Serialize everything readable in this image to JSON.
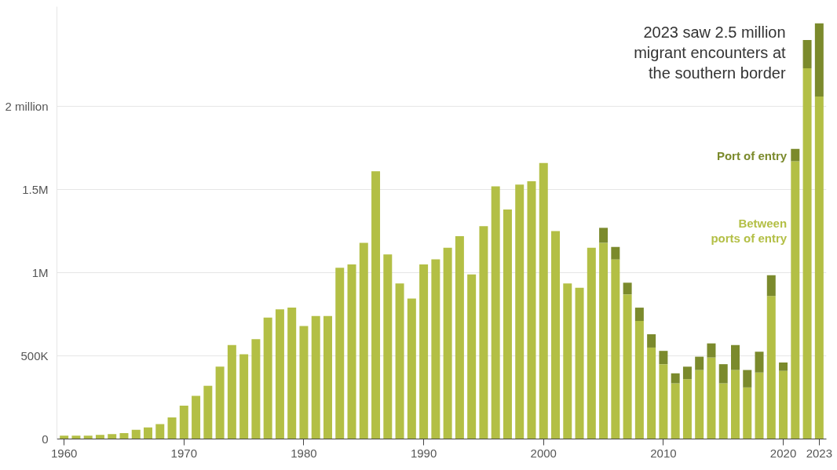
{
  "chart_data": {
    "type": "bar",
    "stacked": true,
    "x": [
      1960,
      1961,
      1962,
      1963,
      1964,
      1965,
      1966,
      1967,
      1968,
      1969,
      1970,
      1971,
      1972,
      1973,
      1974,
      1975,
      1976,
      1977,
      1978,
      1979,
      1980,
      1981,
      1982,
      1983,
      1984,
      1985,
      1986,
      1987,
      1988,
      1989,
      1990,
      1991,
      1992,
      1993,
      1994,
      1995,
      1996,
      1997,
      1998,
      1999,
      2000,
      2001,
      2002,
      2003,
      2004,
      2005,
      2006,
      2007,
      2008,
      2009,
      2010,
      2011,
      2012,
      2013,
      2014,
      2015,
      2016,
      2017,
      2018,
      2019,
      2020,
      2021,
      2022,
      2023
    ],
    "series": [
      {
        "name": "Between ports of entry",
        "color": "#b3bf45",
        "values": [
          20000,
          20000,
          20000,
          25000,
          30000,
          35000,
          55000,
          70000,
          90000,
          130000,
          200000,
          260000,
          320000,
          435000,
          565000,
          510000,
          600000,
          730000,
          780000,
          790000,
          680000,
          740000,
          740000,
          1030000,
          1050000,
          1180000,
          1610000,
          1110000,
          935000,
          845000,
          1050000,
          1080000,
          1150000,
          1220000,
          990000,
          1280000,
          1520000,
          1380000,
          1530000,
          1550000,
          1660000,
          1250000,
          935000,
          910000,
          1150000,
          1180000,
          1080000,
          870000,
          710000,
          550000,
          450000,
          335000,
          360000,
          415000,
          490000,
          335000,
          415000,
          310000,
          400000,
          860000,
          410000,
          1670000,
          2230000,
          2060000
        ]
      },
      {
        "name": "Port of entry",
        "color": "#7b8a2c",
        "values": [
          null,
          null,
          null,
          null,
          null,
          null,
          null,
          null,
          null,
          null,
          null,
          null,
          null,
          null,
          null,
          null,
          null,
          null,
          null,
          null,
          null,
          null,
          null,
          null,
          null,
          null,
          null,
          null,
          null,
          null,
          null,
          null,
          null,
          null,
          null,
          null,
          null,
          null,
          null,
          null,
          null,
          null,
          null,
          null,
          null,
          90000,
          75000,
          70000,
          80000,
          80000,
          80000,
          60000,
          75000,
          80000,
          85000,
          115000,
          150000,
          105000,
          125000,
          125000,
          50000,
          75000,
          170000,
          440000
        ]
      }
    ],
    "ylim": [
      0,
      2600000
    ],
    "yticks": [
      0,
      {
        "value": 500000,
        "label": "500K"
      },
      {
        "value": 1000000,
        "label": "1M"
      },
      {
        "value": 1500000,
        "label": "1.5M"
      },
      {
        "value": 2000000,
        "label": "2 million"
      }
    ],
    "xlim": [
      1959.4,
      2023.6
    ],
    "xticks": [
      1960,
      1970,
      1980,
      1990,
      2000,
      2010,
      2020,
      2023
    ],
    "grid": "y",
    "annotations": [
      {
        "text": "2023 saw 2.5 million migrant encounters at the southern border",
        "x": 2023,
        "y": 2500000
      }
    ]
  }
}
